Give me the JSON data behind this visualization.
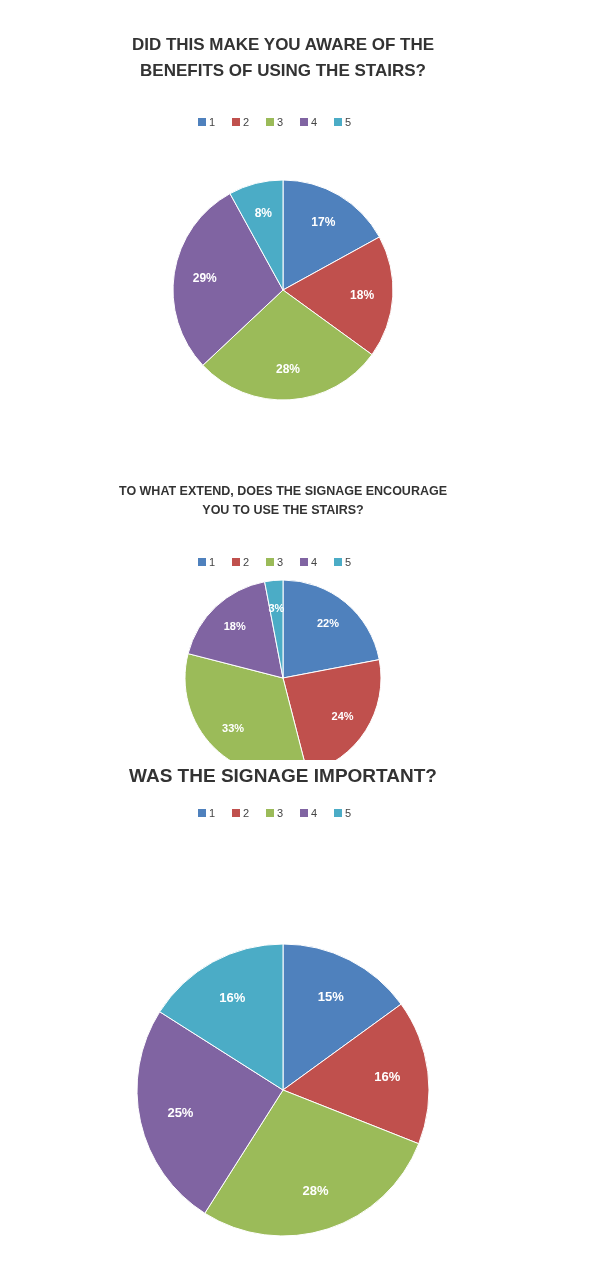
{
  "chart_data": [
    {
      "type": "pie",
      "title": "DID THIS MAKE YOU AWARE OF THE\nBENEFITS OF USING THE STAIRS?",
      "categories": [
        "1",
        "2",
        "3",
        "4",
        "5"
      ],
      "values": [
        17,
        18,
        28,
        29,
        8
      ],
      "value_labels": [
        "17%",
        "18%",
        "28%",
        "29%",
        "8%"
      ],
      "colors": [
        "#4f81bd",
        "#c0504d",
        "#9bbb59",
        "#8064a2",
        "#4bacc6"
      ],
      "legend": "top"
    },
    {
      "type": "pie",
      "title": "TO WHAT EXTEND, DOES THE SIGNAGE ENCOURAGE\nYOU TO USE THE STAIRS?",
      "categories": [
        "1",
        "2",
        "3",
        "4",
        "5"
      ],
      "values": [
        22,
        24,
        33,
        18,
        3
      ],
      "value_labels": [
        "22%",
        "24%",
        "33%",
        "18%",
        "3%"
      ],
      "colors": [
        "#4f81bd",
        "#c0504d",
        "#9bbb59",
        "#8064a2",
        "#4bacc6"
      ],
      "legend": "top"
    },
    {
      "type": "pie",
      "title": "WAS THE SIGNAGE IMPORTANT?",
      "categories": [
        "1",
        "2",
        "3",
        "4",
        "5"
      ],
      "values": [
        15,
        16,
        28,
        25,
        16
      ],
      "value_labels": [
        "15%",
        "16%",
        "28%",
        "25%",
        "16%"
      ],
      "colors": [
        "#4f81bd",
        "#c0504d",
        "#9bbb59",
        "#8064a2",
        "#4bacc6"
      ],
      "legend": "top"
    }
  ]
}
